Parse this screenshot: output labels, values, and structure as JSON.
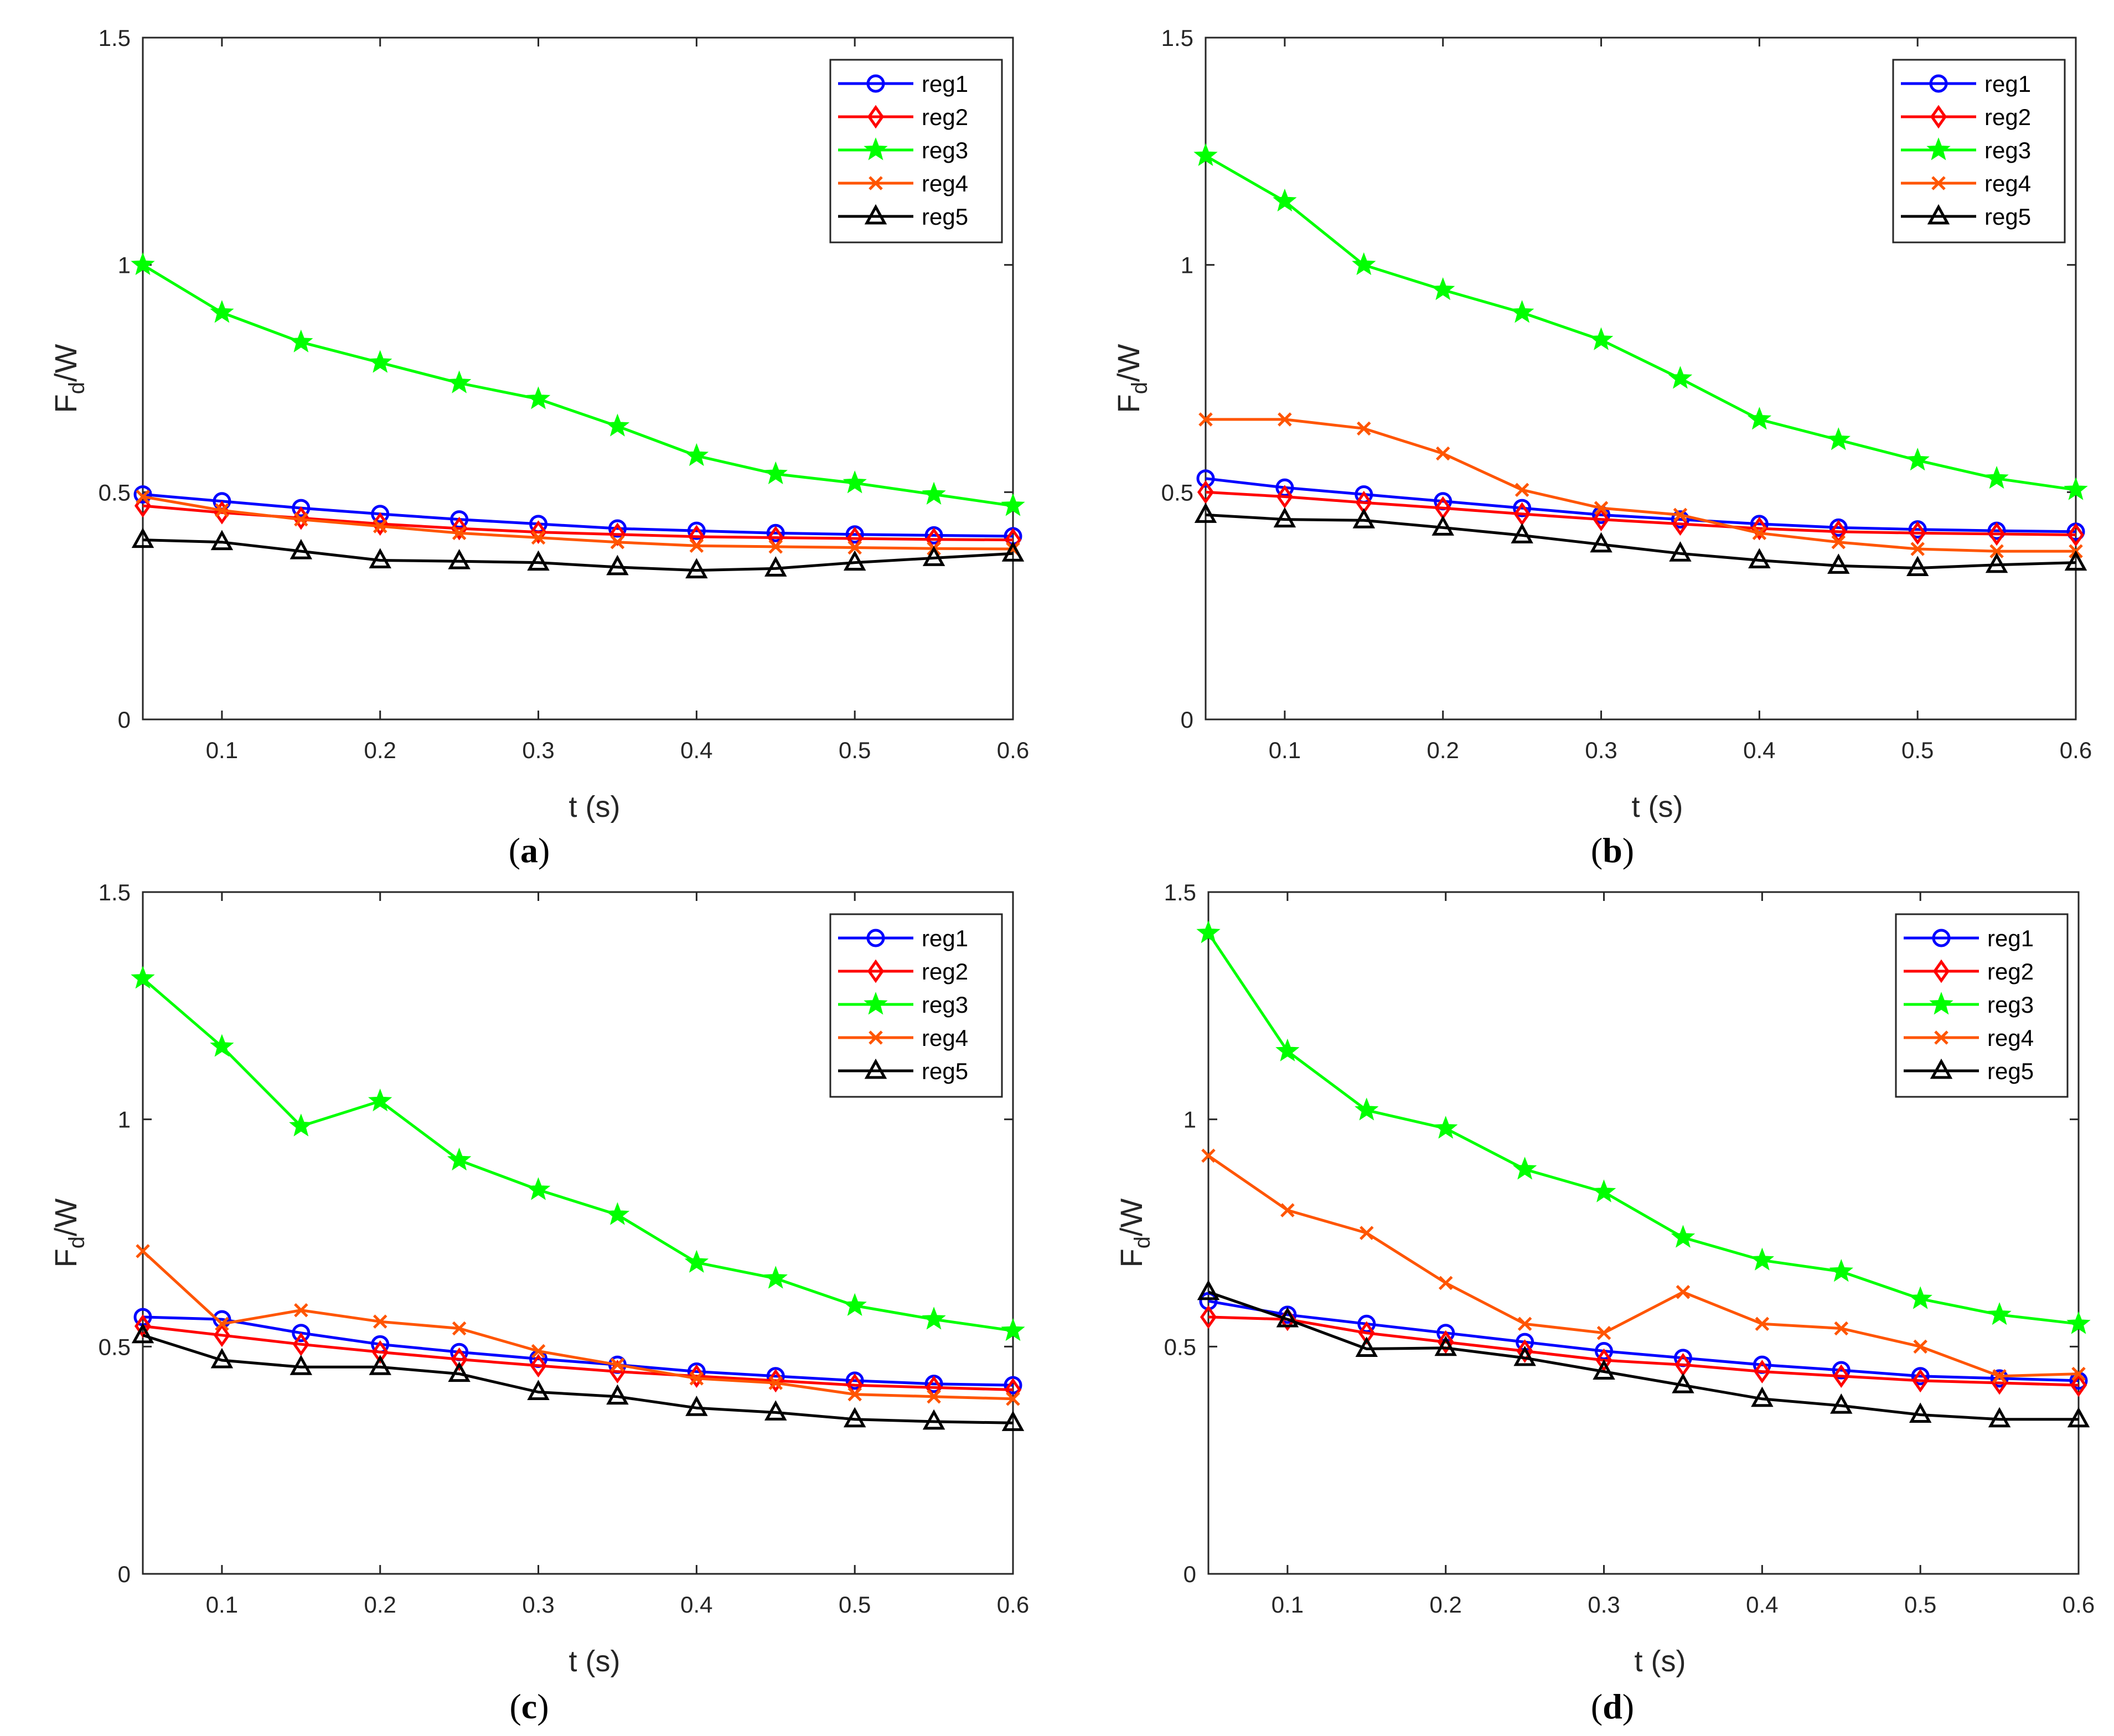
{
  "colors": {
    "reg1": "#0000ff",
    "reg2": "#ff0000",
    "reg3": "#00ff00",
    "reg4": "#ff5500",
    "reg5": "#000000"
  },
  "chart_data": [
    {
      "type": "line",
      "panel": "a",
      "caption_open": "(",
      "caption_letter": "a",
      "caption_close": ")",
      "title": "",
      "xlabel": "t (s)",
      "ylabel_main": "F",
      "ylabel_sub": "d",
      "ylabel_tail": "/W",
      "xlim": [
        0.05,
        0.6
      ],
      "ylim": [
        0,
        1.5
      ],
      "xticks": [
        "0.1",
        "0.2",
        "0.3",
        "0.4",
        "0.5",
        "0.6"
      ],
      "yticks": [
        "0",
        "0.5",
        "1",
        "1.5"
      ],
      "grid": false,
      "legend_position": "top-right",
      "x": [
        0.05,
        0.1,
        0.15,
        0.2,
        0.25,
        0.3,
        0.35,
        0.4,
        0.45,
        0.5,
        0.55,
        0.6
      ],
      "series": [
        {
          "name": "reg1",
          "marker": "circle",
          "values": [
            0.495,
            0.48,
            0.465,
            0.452,
            0.44,
            0.43,
            0.42,
            0.415,
            0.41,
            0.407,
            0.405,
            0.403
          ]
        },
        {
          "name": "reg2",
          "marker": "diamond",
          "values": [
            0.47,
            0.455,
            0.443,
            0.43,
            0.42,
            0.412,
            0.407,
            0.402,
            0.4,
            0.398,
            0.396,
            0.395
          ]
        },
        {
          "name": "reg3",
          "marker": "star",
          "values": [
            1.0,
            0.895,
            0.83,
            0.785,
            0.74,
            0.705,
            0.645,
            0.58,
            0.54,
            0.52,
            0.495,
            0.47
          ]
        },
        {
          "name": "reg4",
          "marker": "x",
          "values": [
            0.49,
            0.46,
            0.44,
            0.425,
            0.41,
            0.4,
            0.39,
            0.382,
            0.38,
            0.378,
            0.376,
            0.375
          ]
        },
        {
          "name": "reg5",
          "marker": "triangle",
          "values": [
            0.395,
            0.39,
            0.37,
            0.35,
            0.348,
            0.345,
            0.335,
            0.328,
            0.332,
            0.345,
            0.355,
            0.365
          ]
        }
      ]
    },
    {
      "type": "line",
      "panel": "b",
      "caption_open": "(",
      "caption_letter": "b",
      "caption_close": ")",
      "title": "",
      "xlabel": "t (s)",
      "ylabel_main": "F",
      "ylabel_sub": "d",
      "ylabel_tail": "/W",
      "xlim": [
        0.05,
        0.6
      ],
      "ylim": [
        0,
        1.5
      ],
      "xticks": [
        "0.1",
        "0.2",
        "0.3",
        "0.4",
        "0.5",
        "0.6"
      ],
      "yticks": [
        "0",
        "0.5",
        "1",
        "1.5"
      ],
      "grid": false,
      "legend_position": "top-right",
      "x": [
        0.05,
        0.1,
        0.15,
        0.2,
        0.25,
        0.3,
        0.35,
        0.4,
        0.45,
        0.5,
        0.55,
        0.6
      ],
      "series": [
        {
          "name": "reg1",
          "marker": "circle",
          "values": [
            0.53,
            0.51,
            0.495,
            0.48,
            0.465,
            0.45,
            0.44,
            0.43,
            0.422,
            0.418,
            0.415,
            0.413
          ]
        },
        {
          "name": "reg2",
          "marker": "diamond",
          "values": [
            0.5,
            0.49,
            0.477,
            0.465,
            0.452,
            0.44,
            0.43,
            0.42,
            0.413,
            0.41,
            0.408,
            0.406
          ]
        },
        {
          "name": "reg3",
          "marker": "star",
          "values": [
            1.24,
            1.14,
            1.0,
            0.945,
            0.895,
            0.835,
            0.75,
            0.66,
            0.615,
            0.57,
            0.53,
            0.505
          ]
        },
        {
          "name": "reg4",
          "marker": "x",
          "values": [
            0.66,
            0.66,
            0.64,
            0.585,
            0.505,
            0.465,
            0.45,
            0.41,
            0.39,
            0.375,
            0.37,
            0.37
          ]
        },
        {
          "name": "reg5",
          "marker": "triangle",
          "values": [
            0.45,
            0.44,
            0.438,
            0.422,
            0.405,
            0.385,
            0.365,
            0.35,
            0.338,
            0.333,
            0.34,
            0.345
          ]
        }
      ]
    },
    {
      "type": "line",
      "panel": "c",
      "caption_open": "(",
      "caption_letter": "c",
      "caption_close": ")",
      "title": "",
      "xlabel": "t (s)",
      "ylabel_main": "F",
      "ylabel_sub": "d",
      "ylabel_tail": "/W",
      "xlim": [
        0.05,
        0.6
      ],
      "ylim": [
        0,
        1.5
      ],
      "xticks": [
        "0.1",
        "0.2",
        "0.3",
        "0.4",
        "0.5",
        "0.6"
      ],
      "yticks": [
        "0",
        "0.5",
        "1",
        "1.5"
      ],
      "grid": false,
      "legend_position": "top-right",
      "x": [
        0.05,
        0.1,
        0.15,
        0.2,
        0.25,
        0.3,
        0.35,
        0.4,
        0.45,
        0.5,
        0.55,
        0.6
      ],
      "series": [
        {
          "name": "reg1",
          "marker": "circle",
          "values": [
            0.565,
            0.56,
            0.53,
            0.505,
            0.488,
            0.473,
            0.46,
            0.445,
            0.435,
            0.425,
            0.418,
            0.415
          ]
        },
        {
          "name": "reg2",
          "marker": "diamond",
          "values": [
            0.545,
            0.525,
            0.505,
            0.488,
            0.472,
            0.458,
            0.445,
            0.435,
            0.425,
            0.415,
            0.41,
            0.405
          ]
        },
        {
          "name": "reg3",
          "marker": "star",
          "values": [
            1.31,
            1.16,
            0.985,
            1.04,
            0.91,
            0.845,
            0.79,
            0.685,
            0.65,
            0.59,
            0.56,
            0.535
          ]
        },
        {
          "name": "reg4",
          "marker": "x",
          "values": [
            0.71,
            0.55,
            0.58,
            0.555,
            0.54,
            0.49,
            0.46,
            0.43,
            0.42,
            0.395,
            0.39,
            0.385
          ]
        },
        {
          "name": "reg5",
          "marker": "triangle",
          "values": [
            0.525,
            0.47,
            0.455,
            0.455,
            0.44,
            0.4,
            0.39,
            0.365,
            0.355,
            0.34,
            0.335,
            0.332
          ]
        }
      ]
    },
    {
      "type": "line",
      "panel": "d",
      "caption_open": "(",
      "caption_letter": "d",
      "caption_close": ")",
      "title": "",
      "xlabel": "t (s)",
      "ylabel_main": "F",
      "ylabel_sub": "d",
      "ylabel_tail": "/W",
      "xlim": [
        0.05,
        0.6
      ],
      "ylim": [
        0,
        1.5
      ],
      "xticks": [
        "0.1",
        "0.2",
        "0.3",
        "0.4",
        "0.5",
        "0.6"
      ],
      "yticks": [
        "0",
        "0.5",
        "1",
        "1.5"
      ],
      "grid": false,
      "legend_position": "top-right",
      "x": [
        0.05,
        0.1,
        0.15,
        0.2,
        0.25,
        0.3,
        0.35,
        0.4,
        0.45,
        0.5,
        0.55,
        0.6
      ],
      "series": [
        {
          "name": "reg1",
          "marker": "circle",
          "values": [
            0.6,
            0.57,
            0.55,
            0.53,
            0.51,
            0.49,
            0.475,
            0.46,
            0.448,
            0.435,
            0.43,
            0.425
          ]
        },
        {
          "name": "reg2",
          "marker": "diamond",
          "values": [
            0.565,
            0.56,
            0.53,
            0.51,
            0.49,
            0.47,
            0.46,
            0.445,
            0.435,
            0.425,
            0.42,
            0.415
          ]
        },
        {
          "name": "reg3",
          "marker": "star",
          "values": [
            1.41,
            1.15,
            1.02,
            0.98,
            0.89,
            0.84,
            0.74,
            0.69,
            0.665,
            0.605,
            0.57,
            0.55
          ]
        },
        {
          "name": "reg4",
          "marker": "x",
          "values": [
            0.92,
            0.8,
            0.75,
            0.64,
            0.55,
            0.53,
            0.62,
            0.55,
            0.54,
            0.5,
            0.435,
            0.44
          ]
        },
        {
          "name": "reg5",
          "marker": "triangle",
          "values": [
            0.62,
            0.56,
            0.495,
            0.497,
            0.475,
            0.445,
            0.415,
            0.385,
            0.37,
            0.35,
            0.34,
            0.34
          ]
        }
      ]
    }
  ]
}
